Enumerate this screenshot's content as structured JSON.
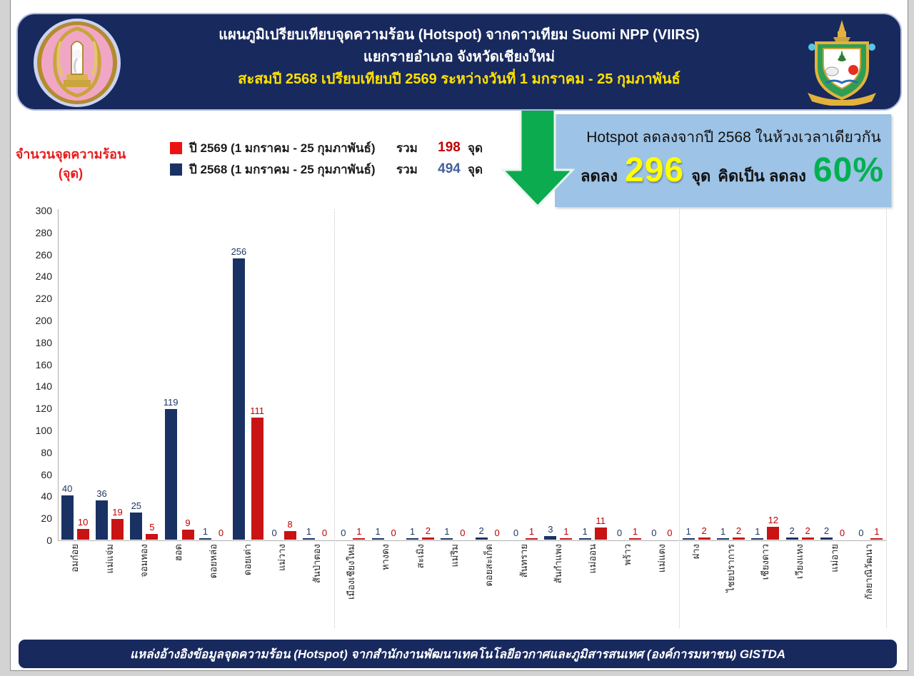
{
  "header": {
    "title_line1": "แผนภูมิเปรียบเทียบจุดความร้อน (Hotspot) จากดาวเทียม Suomi NPP (VIIRS)",
    "title_line2": "แยกรายอำเภอ จังหวัดเชียงใหม่",
    "title_line3": "สะสมปี 2568 เปรียบเทียบปี 2569 ระหว่างวันที่ 1 มกราคม - 25 กุมภาพันธ์",
    "bg_color": "#18295e",
    "line3_color": "#ffe100",
    "left_seal_icon": "chiangmai-province-seal",
    "right_crest_icon": "chiangmai-coat-of-arms"
  },
  "legend": {
    "items": [
      {
        "label": "ปี 2569 (1 มกราคม - 25 กุมภาพันธ์)",
        "total_prefix": "รวม",
        "total": "198",
        "unit": "จุด",
        "swatch_color": "#ee1111",
        "total_color": "#c00000"
      },
      {
        "label": "ปี 2568 (1 มกราคม - 25 กุมภาพันธ์)",
        "total_prefix": "รวม",
        "total": "494",
        "unit": "จุด",
        "swatch_color": "#1a3263",
        "total_color": "#44609e"
      }
    ]
  },
  "callout": {
    "bg_color": "#9dc3e6",
    "arrow_color": "#0cab4f",
    "line1": "Hotspot ลดลงจากปี 2568 ในห้วงเวลาเดียวกัน",
    "decrease_label": "ลดลง",
    "decrease_value": "296",
    "decrease_unit": "จุด",
    "percent_label": "คิดเป็น ลดลง",
    "percent_value": "60%",
    "decrease_value_color": "#ffff00",
    "percent_value_color": "#00b050"
  },
  "chart_data": {
    "type": "bar",
    "ylabel_line1": "จำนวนจุดความร้อน",
    "ylabel_line2": "(จุด)",
    "ylim": [
      0,
      300
    ],
    "ytick_step": 20,
    "grid": false,
    "legend_position": "top-left",
    "categories": [
      "อมก๋อย",
      "แม่แจ่ม",
      "จอมทอง",
      "ฮอด",
      "ดอยหล่อ",
      "ดอยเต่า",
      "แม่วาง",
      "สันป่าตอง",
      "เมืองเชียงใหม่",
      "หางดง",
      "สะเมิง",
      "แม่ริม",
      "ดอยสะเก็ด",
      "สันทราย",
      "สันกำแพง",
      "แม่ออน",
      "พร้าว",
      "แม่แตง",
      "ฝาง",
      "ไชยปราการ",
      "เชียงดาว",
      "เวียงแหง",
      "แม่อาย",
      "กัลยาณิวัฒนา"
    ],
    "series": [
      {
        "name": "ปี 2568 (1 มกราคม - 25 กุมภาพันธ์)",
        "color": "#1a3263",
        "label_color": "#1f3864",
        "total": 494,
        "values": [
          40,
          36,
          25,
          119,
          1,
          256,
          0,
          1,
          0,
          1,
          1,
          1,
          2,
          0,
          3,
          1,
          0,
          0,
          1,
          1,
          1,
          2,
          2,
          0
        ]
      },
      {
        "name": "ปี 2569 (1 มกราคม - 25 กุมภาพันธ์)",
        "color": "#c81414",
        "label_color": "#c00000",
        "total": 198,
        "values": [
          10,
          19,
          5,
          9,
          0,
          111,
          8,
          0,
          1,
          0,
          2,
          0,
          0,
          1,
          1,
          11,
          1,
          0,
          2,
          2,
          12,
          2,
          0,
          1
        ]
      }
    ],
    "separators_after_category_index": [
      7,
      17,
      23
    ]
  },
  "footer": {
    "text": "แหล่งอ้างอิงข้อมูลจุดความร้อน (Hotspot)  จากสำนักงานพัฒนาเทคโนโลยีอวกาศและภูมิสารสนเทศ (องค์การมหาชน) GISTDA",
    "bg_color": "#18295e"
  }
}
